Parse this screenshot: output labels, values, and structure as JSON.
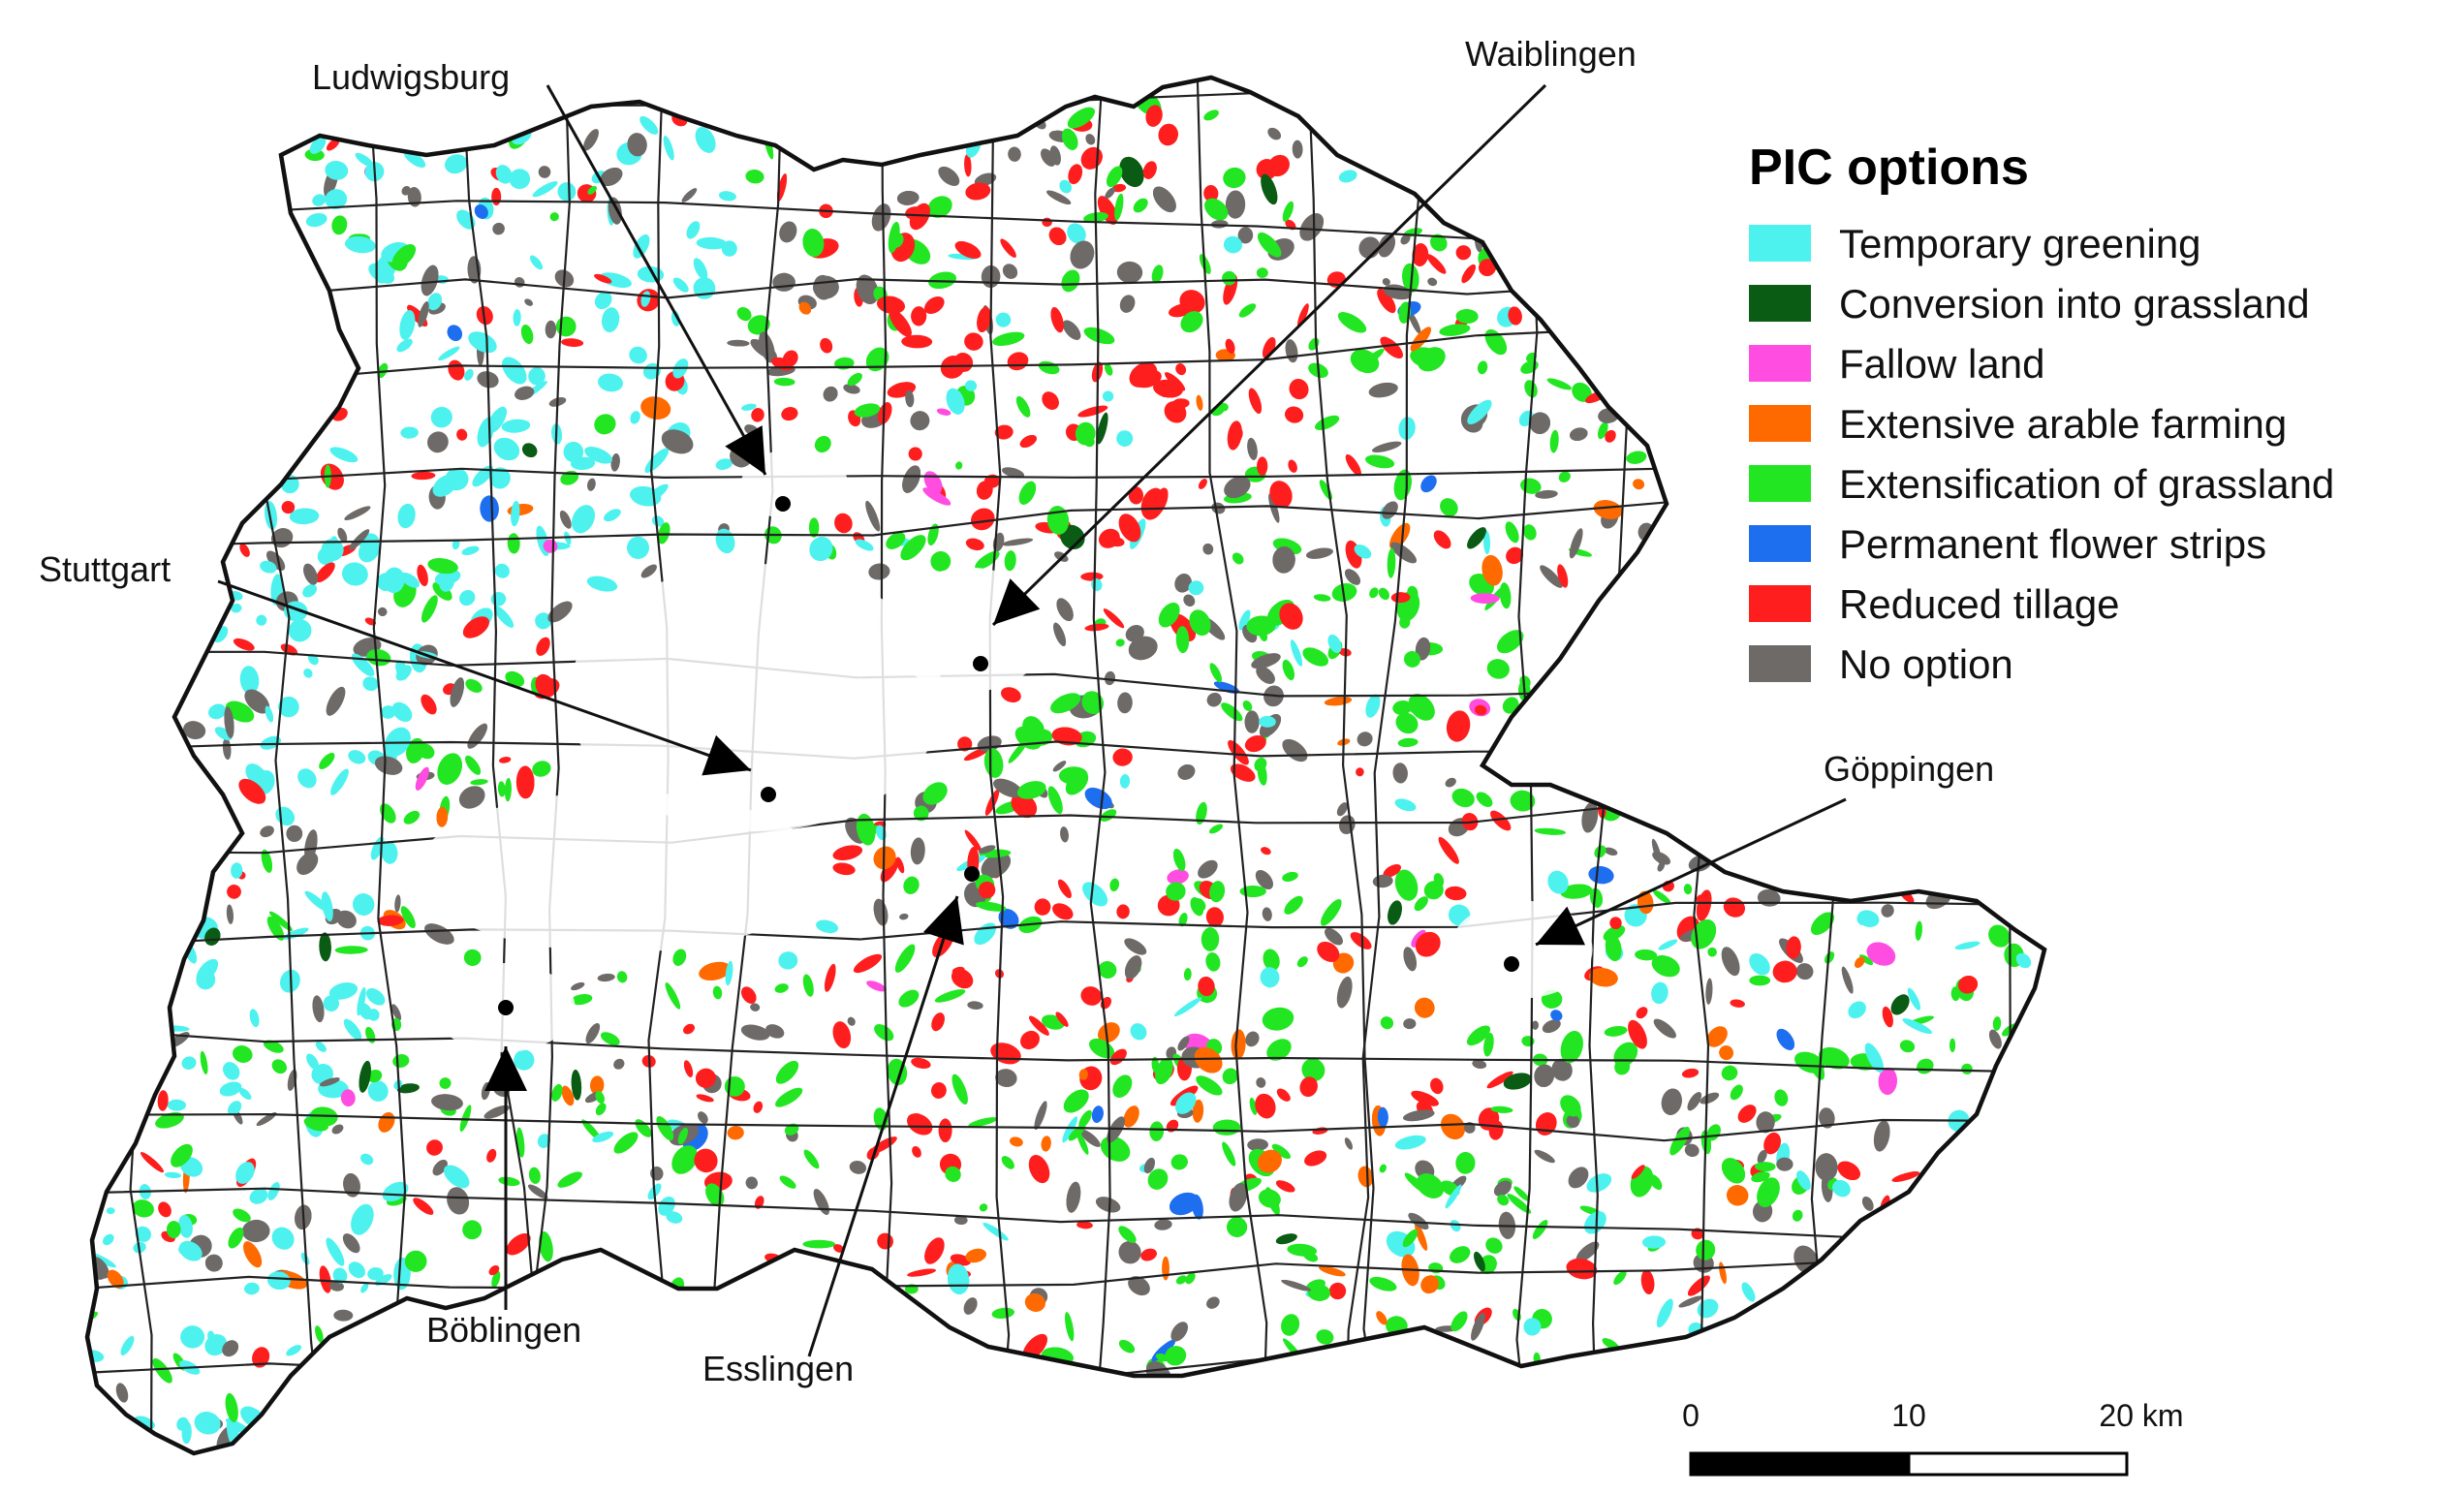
{
  "legend": {
    "title": "PIC options",
    "items": [
      {
        "label": "Temporary greening",
        "color": "#4df2ee"
      },
      {
        "label": "Conversion into grassland",
        "color": "#0a5c14"
      },
      {
        "label": "Fallow land",
        "color": "#ff4de1"
      },
      {
        "label": "Extensive arable farming",
        "color": "#ff6a00"
      },
      {
        "label": "Extensification of grassland",
        "color": "#22e622"
      },
      {
        "label": "Permanent flower strips",
        "color": "#1e6ff0"
      },
      {
        "label": "Reduced tillage",
        "color": "#ff1e1e"
      },
      {
        "label": "No option",
        "color": "#6e6a68"
      }
    ]
  },
  "cities": [
    {
      "name": "Ludwigsburg"
    },
    {
      "name": "Waiblingen"
    },
    {
      "name": "Stuttgart"
    },
    {
      "name": "Göppingen"
    },
    {
      "name": "Böblingen"
    },
    {
      "name": "Esslingen"
    }
  ],
  "scale_bar": {
    "ticks": [
      "0",
      "10",
      "20 km"
    ]
  }
}
